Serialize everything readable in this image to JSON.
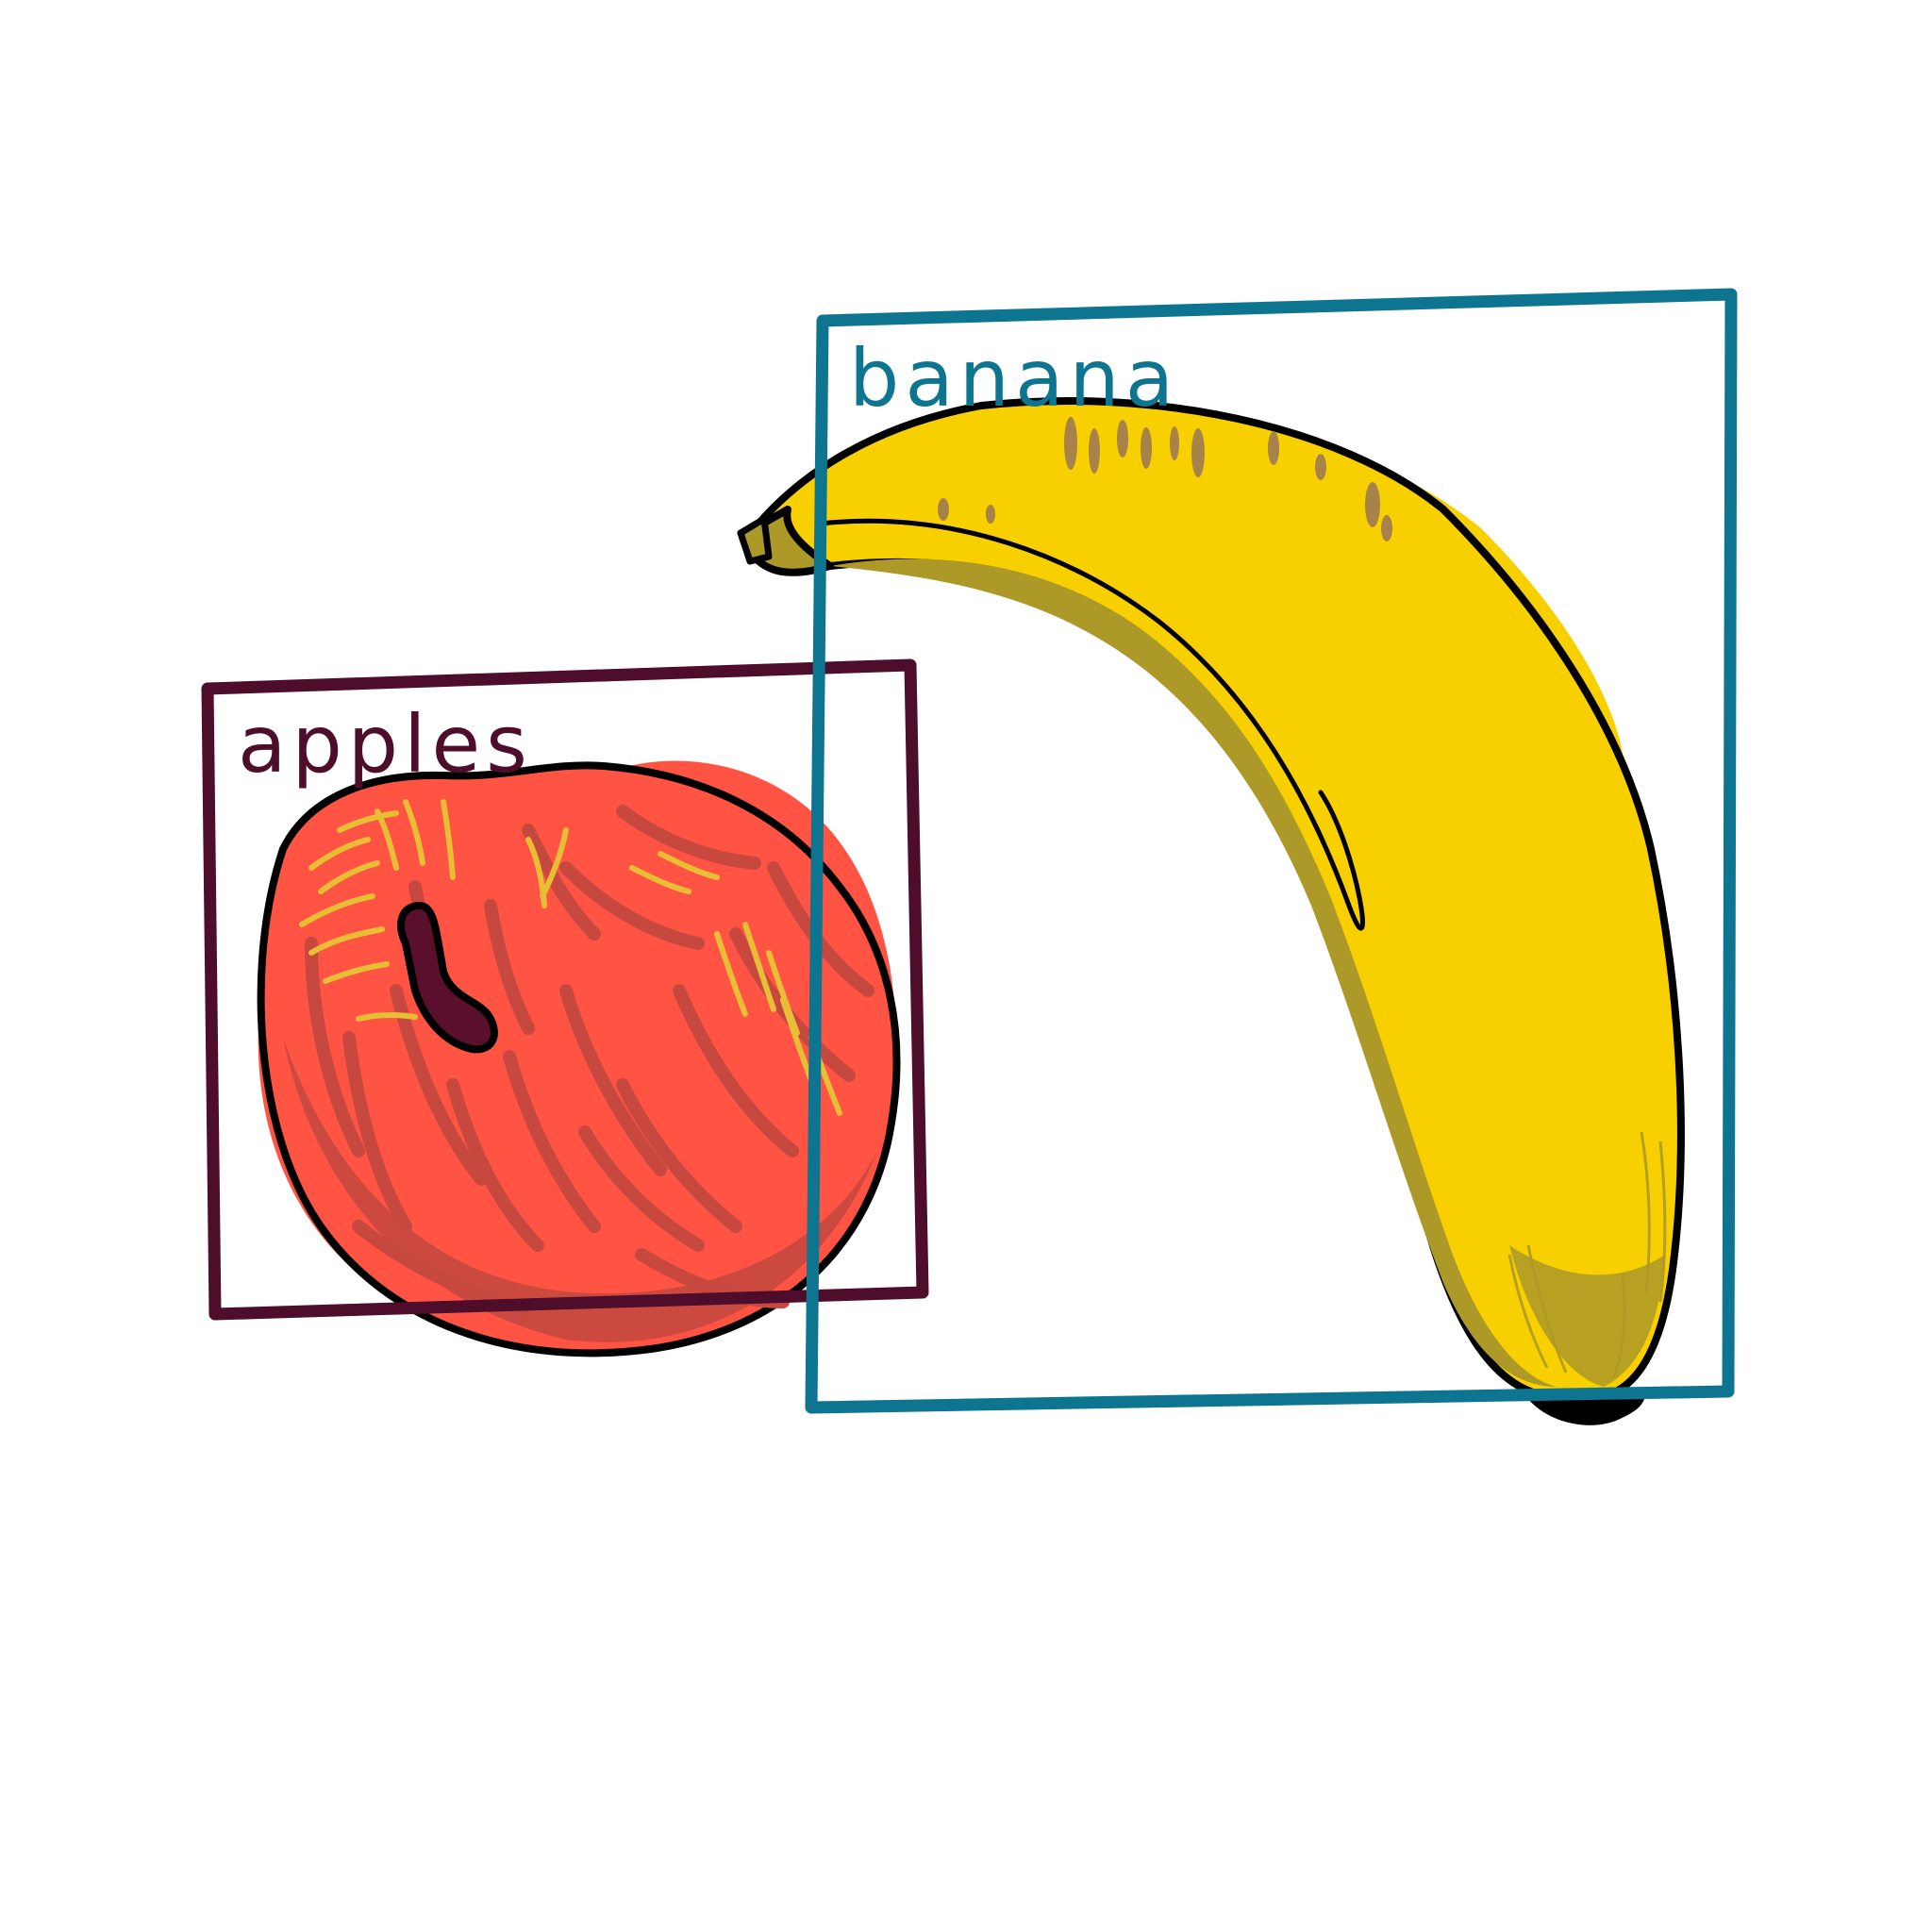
{
  "labels": {
    "apple": "apples",
    "banana": "banana"
  },
  "colors": {
    "apple_box": "#4d0d2b",
    "banana_box": "#0e7590",
    "apple_fill": "#ff5444",
    "apple_shade": "#c7483f",
    "apple_highlight": "#e8be35",
    "stem": "#5a0f2c",
    "banana_fill": "#f8d000",
    "banana_shade": "#ad9928",
    "banana_spots": "#a7834a",
    "outline": "#000000"
  },
  "icons": {
    "apple": "apple-icon",
    "banana": "banana-icon"
  }
}
